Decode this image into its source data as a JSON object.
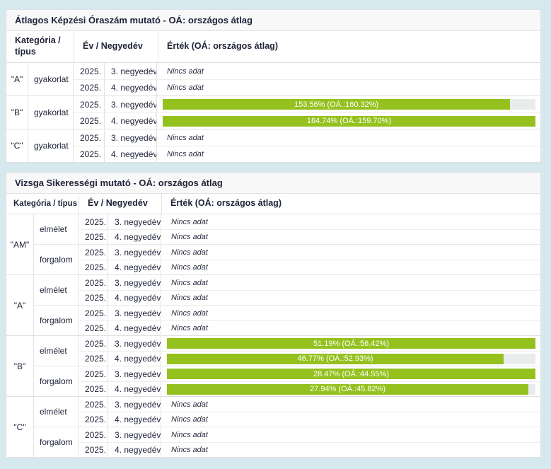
{
  "colors": {
    "page_background": "#d6e9ef",
    "panel_background": "#ffffff",
    "bar_green": "#95c11f",
    "bar_track_gray": "#e9eced",
    "border_gray": "#e0e0e0",
    "text_dark": "#20243a"
  },
  "tables": [
    {
      "title": "Átlagos Képzési Óraszám mutató - OÁ: országos átlag",
      "headers": {
        "category_type": "Kategória / típus",
        "year_quarter": "Év / Negyedév",
        "value": "Érték (OÁ: országos átlag)"
      },
      "groups": [
        {
          "category": "\"A\"",
          "types": [
            {
              "type": "gyakorlat",
              "rows": [
                {
                  "year": "2025.",
                  "quarter": "3. negyedév",
                  "label": "Nincs adat"
                },
                {
                  "year": "2025.",
                  "quarter": "4. negyedév",
                  "label": "Nincs adat"
                }
              ]
            }
          ]
        },
        {
          "category": "\"B\"",
          "types": [
            {
              "type": "gyakorlat",
              "rows": [
                {
                  "year": "2025.",
                  "quarter": "3. negyedév",
                  "bar": {
                    "label": "153.56% (OÁ.:160.32%)",
                    "value_pct": 153.56,
                    "national_avg_pct": 160.32,
                    "pct": 93.2
                  }
                },
                {
                  "year": "2025.",
                  "quarter": "4. negyedév",
                  "bar": {
                    "label": "164.74% (OÁ.:159.70%)",
                    "value_pct": 164.74,
                    "national_avg_pct": 159.7,
                    "pct": 100
                  }
                }
              ]
            }
          ]
        },
        {
          "category": "\"C\"",
          "types": [
            {
              "type": "gyakorlat",
              "rows": [
                {
                  "year": "2025.",
                  "quarter": "3. negyedév",
                  "label": "Nincs adat"
                },
                {
                  "year": "2025.",
                  "quarter": "4. negyedév",
                  "label": "Nincs adat"
                }
              ]
            }
          ]
        }
      ]
    },
    {
      "title": "Vizsga Sikerességi mutató - OÁ: országos átlag",
      "headers": {
        "category_type": "Kategória / típus",
        "year_quarter": "Év / Negyedév",
        "value": "Érték (OÁ: országos átlag)"
      },
      "groups": [
        {
          "category": "\"AM\"",
          "types": [
            {
              "type": "elmélet",
              "rows": [
                {
                  "year": "2025.",
                  "quarter": "3. negyedév",
                  "label": "Nincs adat"
                },
                {
                  "year": "2025.",
                  "quarter": "4. negyedév",
                  "label": "Nincs adat"
                }
              ]
            },
            {
              "type": "forgalom",
              "rows": [
                {
                  "year": "2025.",
                  "quarter": "3. negyedév",
                  "label": "Nincs adat"
                },
                {
                  "year": "2025.",
                  "quarter": "4. negyedév",
                  "label": "Nincs adat"
                }
              ]
            }
          ]
        },
        {
          "category": "\"A\"",
          "types": [
            {
              "type": "elmélet",
              "rows": [
                {
                  "year": "2025.",
                  "quarter": "3. negyedév",
                  "label": "Nincs adat"
                },
                {
                  "year": "2025.",
                  "quarter": "4. negyedév",
                  "label": "Nincs adat"
                }
              ]
            },
            {
              "type": "forgalom",
              "rows": [
                {
                  "year": "2025.",
                  "quarter": "3. negyedév",
                  "label": "Nincs adat"
                },
                {
                  "year": "2025.",
                  "quarter": "4. negyedév",
                  "label": "Nincs adat"
                }
              ]
            }
          ]
        },
        {
          "category": "\"B\"",
          "types": [
            {
              "type": "elmélet",
              "rows": [
                {
                  "year": "2025.",
                  "quarter": "3. negyedév",
                  "bar": {
                    "label": "51.19% (OÁ.:56.42%)",
                    "value_pct": 51.19,
                    "national_avg_pct": 56.42,
                    "pct": 100
                  }
                },
                {
                  "year": "2025.",
                  "quarter": "4. negyedév",
                  "bar": {
                    "label": "46.77% (OÁ.:52.93%)",
                    "value_pct": 46.77,
                    "national_avg_pct": 52.93,
                    "pct": 91.4
                  }
                }
              ]
            },
            {
              "type": "forgalom",
              "rows": [
                {
                  "year": "2025.",
                  "quarter": "3. negyedév",
                  "bar": {
                    "label": "28.47% (OÁ.:44.55%)",
                    "value_pct": 28.47,
                    "national_avg_pct": 44.55,
                    "pct": 100
                  }
                },
                {
                  "year": "2025.",
                  "quarter": "4. negyedév",
                  "bar": {
                    "label": "27.94% (OÁ.:45.82%)",
                    "value_pct": 27.94,
                    "national_avg_pct": 45.82,
                    "pct": 98.1
                  }
                }
              ]
            }
          ]
        },
        {
          "category": "\"C\"",
          "types": [
            {
              "type": "elmélet",
              "rows": [
                {
                  "year": "2025.",
                  "quarter": "3. negyedév",
                  "label": "Nincs adat"
                },
                {
                  "year": "2025.",
                  "quarter": "4. negyedév",
                  "label": "Nincs adat"
                }
              ]
            },
            {
              "type": "forgalom",
              "rows": [
                {
                  "year": "2025.",
                  "quarter": "3. negyedév",
                  "label": "Nincs adat"
                },
                {
                  "year": "2025.",
                  "quarter": "4. negyedév",
                  "label": "Nincs adat"
                }
              ]
            }
          ]
        }
      ]
    }
  ]
}
